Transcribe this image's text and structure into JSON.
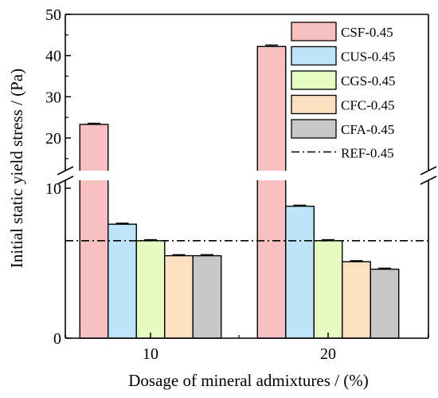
{
  "chart_data": {
    "type": "bar",
    "xlabel": "Dosage of mineral admixtures / (%)",
    "ylabel": "Initial static yield stress / (Pa)",
    "categories": [
      "10",
      "20"
    ],
    "series": [
      {
        "name": "CSF-0.45",
        "color": "#f9c0c2",
        "values": [
          23.3,
          42.2
        ],
        "errors": [
          0.25,
          0.35
        ]
      },
      {
        "name": "CUS-0.45",
        "color": "#bde4f8",
        "values": [
          7.6,
          8.8
        ],
        "errors": [
          0.05,
          0.06
        ]
      },
      {
        "name": "CGS-0.45",
        "color": "#e6fbc0",
        "values": [
          6.5,
          6.5
        ],
        "errors": [
          0.03,
          0.03
        ]
      },
      {
        "name": "CFC-0.45",
        "color": "#fce0c2",
        "values": [
          5.5,
          5.1
        ],
        "errors": [
          0.04,
          0.04
        ]
      },
      {
        "name": "CFA-0.45",
        "color": "#c7c7c7",
        "values": [
          5.5,
          4.6
        ],
        "errors": [
          0.03,
          0.03
        ]
      }
    ],
    "reference": {
      "name": "REF-0.45",
      "value": 6.5,
      "style": "dash-dot"
    },
    "y_axis_break": {
      "lower_range": [
        0,
        10
      ],
      "upper_range": [
        14,
        50
      ]
    },
    "yticks_lower": [
      0,
      10
    ],
    "yticks_upper": [
      20,
      30,
      40,
      50
    ],
    "legend_position": "top-right",
    "grid": false
  }
}
